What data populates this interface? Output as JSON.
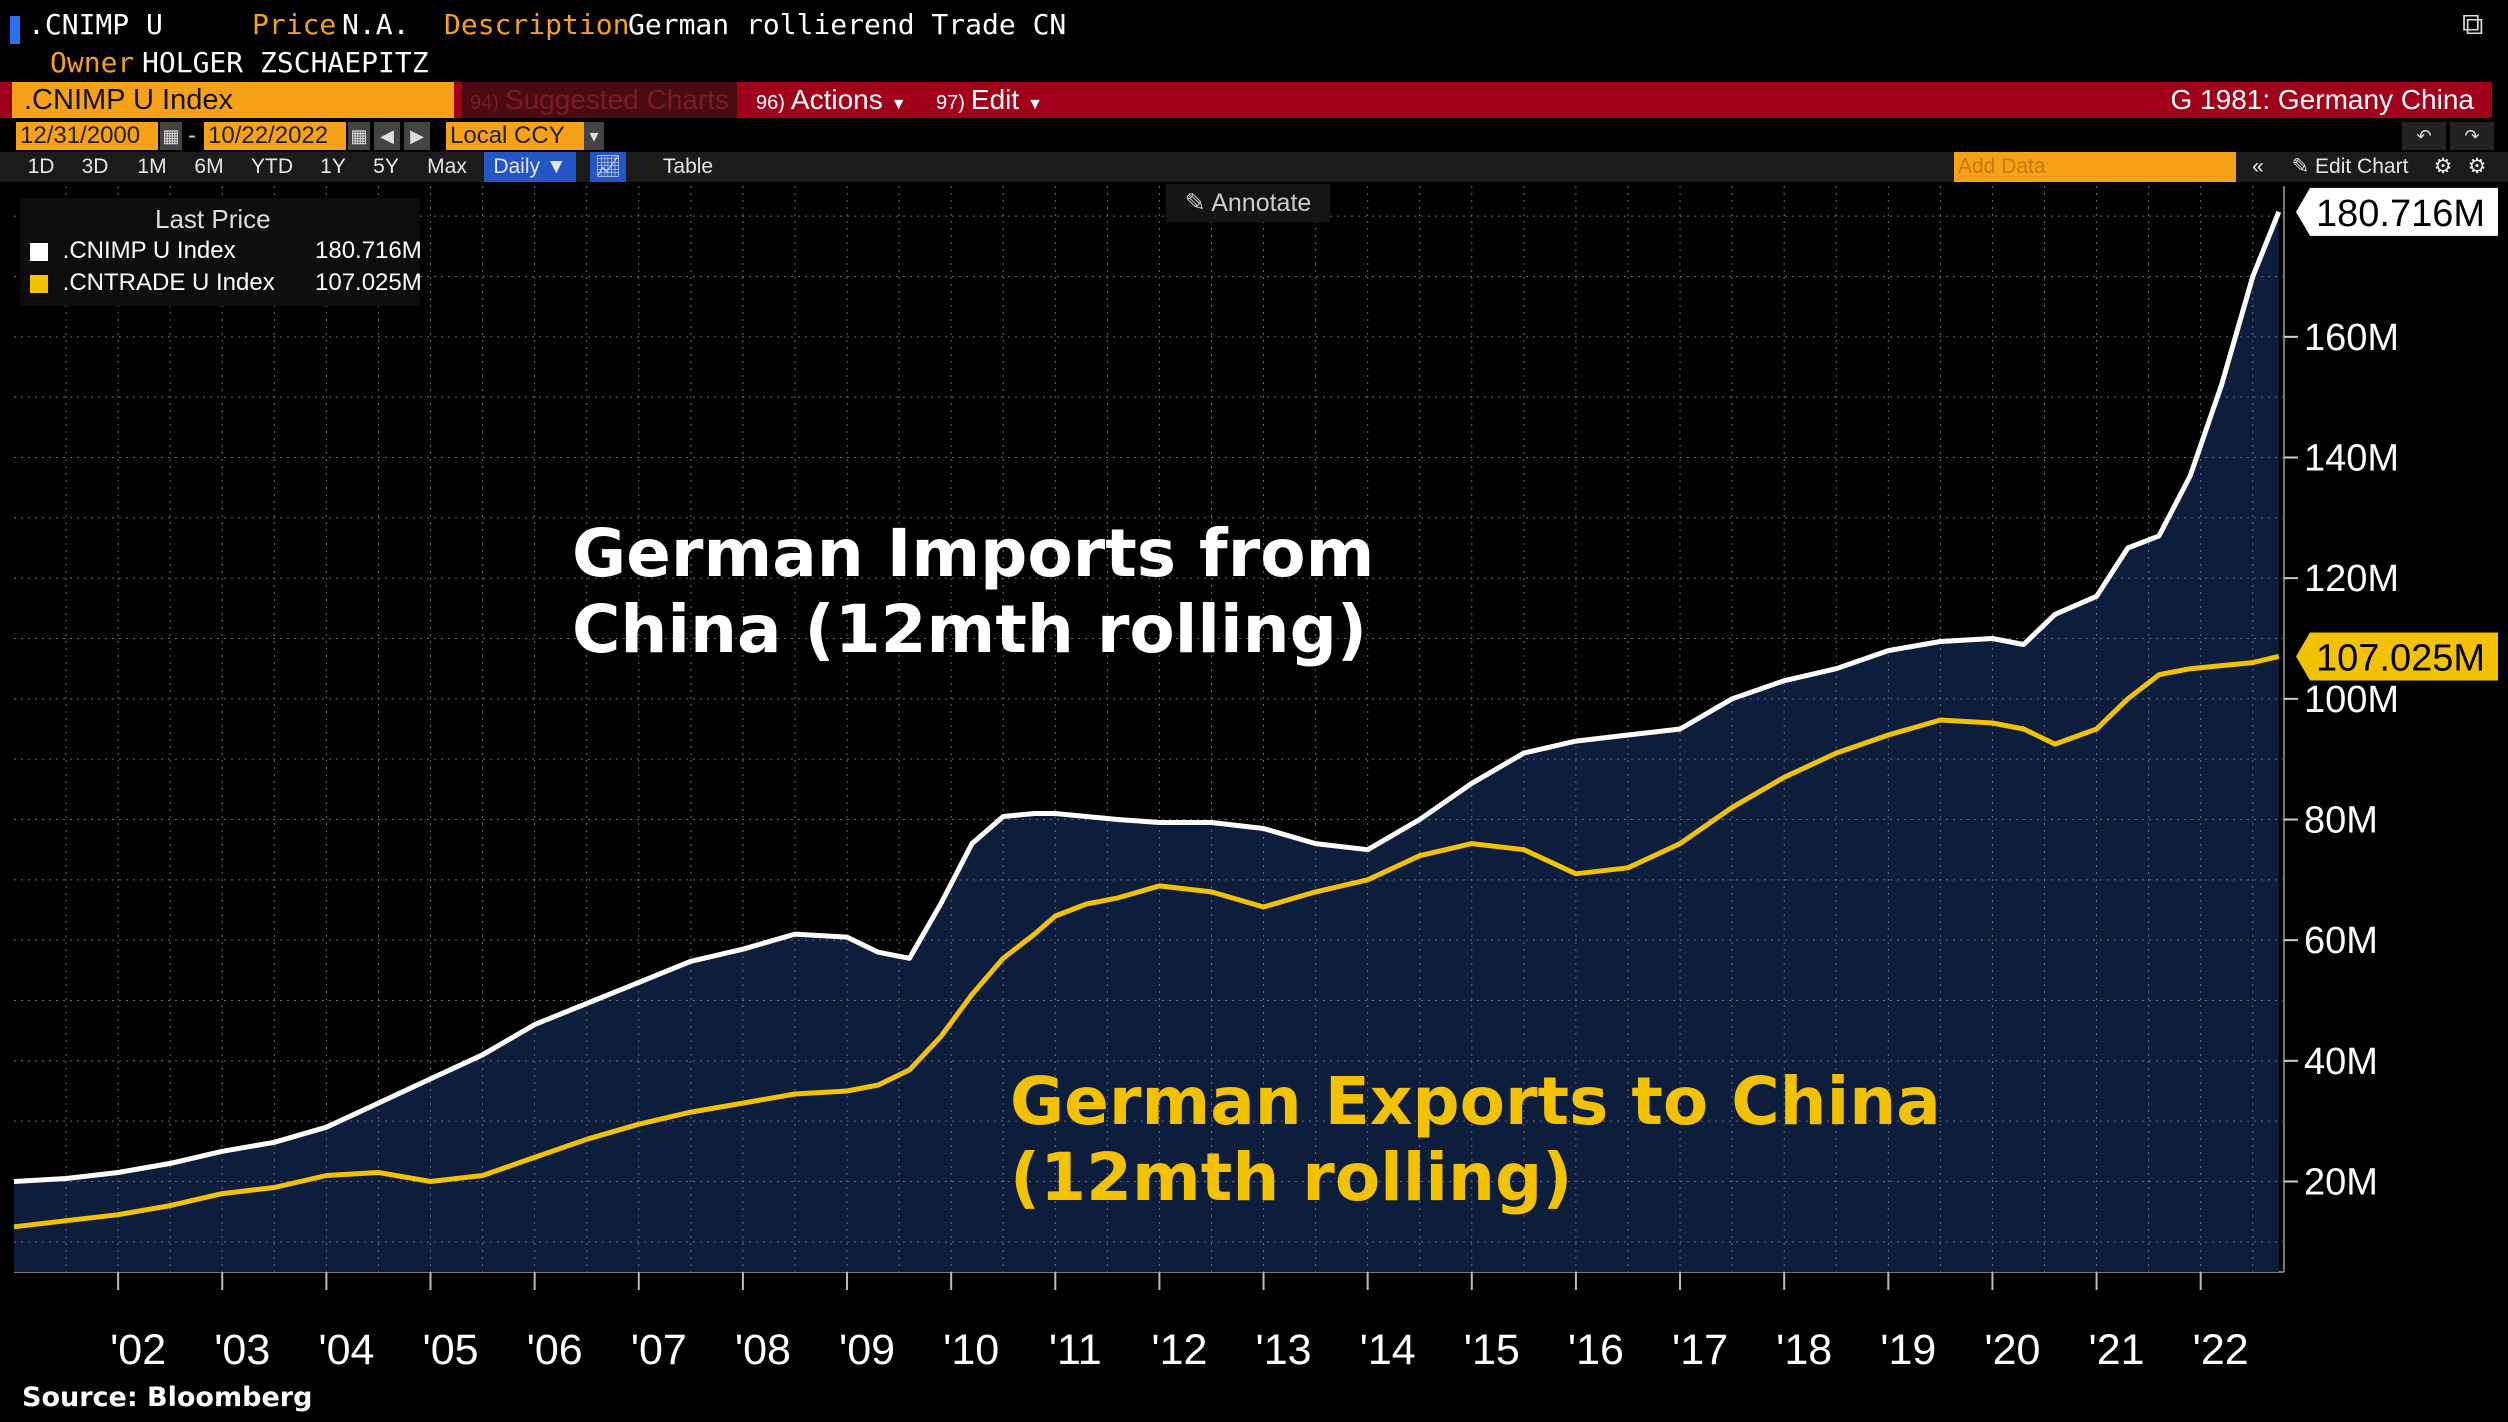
{
  "header": {
    "ticker": ".CNIMP U",
    "price_label": "Price",
    "price_value": "N.A.",
    "description_label": "Description",
    "description_value": "German rollierend Trade CN",
    "owner_label": "Owner",
    "owner_value": "HOLGER ZSCHAEPITZ"
  },
  "command_bar": {
    "security_field": ".CNIMP U Index",
    "suggested_num": "94)",
    "suggested_label": "Suggested Charts",
    "actions_num": "96)",
    "actions_label": "Actions",
    "edit_num": "97)",
    "edit_label": "Edit",
    "chart_name": "G 1981: Germany China"
  },
  "date_row": {
    "start_date": "12/31/2000",
    "separator": "-",
    "end_date": "10/22/2022",
    "currency": "Local CCY"
  },
  "period_row": {
    "periods": [
      "1D",
      "3D",
      "1M",
      "6M",
      "YTD",
      "1Y",
      "5Y",
      "Max"
    ],
    "frequency": "Daily",
    "table_label": "Table",
    "add_data_placeholder": "Add Data",
    "edit_chart_label": "Edit Chart"
  },
  "annotate_label": "Annotate",
  "legend": {
    "title": "Last Price",
    "entries": [
      {
        "name": ".CNIMP U Index",
        "value": "180.716M",
        "color": "#ffffff"
      },
      {
        "name": ".CNTRADE U Index",
        "value": "107.025M",
        "color": "#f2c200"
      }
    ]
  },
  "labels": {
    "imports_line1": "German Imports from",
    "imports_line2": "China (12mth rolling)",
    "exports_line1": "German Exports to China",
    "exports_line2": "(12mth rolling)"
  },
  "source": "Source: Bloomberg",
  "colors": {
    "imports": "#ffffff",
    "exports": "#f2c200",
    "area_fill": "#0c1e3c",
    "command_bar": "#a1001a",
    "orange_accent": "#f39f1f"
  },
  "chart_data": {
    "type": "line",
    "x_unit": "year",
    "ylim": [
      5,
      185
    ],
    "xlim": [
      2001.0,
      2022.8
    ],
    "y_ticks": [
      20,
      40,
      60,
      80,
      100,
      120,
      140,
      160
    ],
    "y_tick_labels": [
      "20M",
      "40M",
      "60M",
      "80M",
      "100M",
      "120M",
      "140M",
      "160M"
    ],
    "x_ticks": [
      2002,
      2003,
      2004,
      2005,
      2006,
      2007,
      2008,
      2009,
      2010,
      2011,
      2012,
      2013,
      2014,
      2015,
      2016,
      2017,
      2018,
      2019,
      2020,
      2021,
      2022
    ],
    "x_tick_labels": [
      "'02",
      "'03",
      "'04",
      "'05",
      "'06",
      "'07",
      "'08",
      "'09",
      "'10",
      "'11",
      "'12",
      "'13",
      "'14",
      "'15",
      "'16",
      "'17",
      "'18",
      "'19",
      "'20",
      "'21",
      "'22"
    ],
    "grid": true,
    "legend_position": "top-left",
    "series": [
      {
        "name": ".CNIMP U Index",
        "color": "#ffffff",
        "last_value_label": "180.716M",
        "last_value": 180.716,
        "x": [
          2001.0,
          2001.5,
          2002.0,
          2002.5,
          2003.0,
          2003.5,
          2004.0,
          2004.5,
          2005.0,
          2005.5,
          2006.0,
          2006.5,
          2007.0,
          2007.5,
          2008.0,
          2008.5,
          2009.0,
          2009.3,
          2009.6,
          2009.9,
          2010.2,
          2010.5,
          2010.8,
          2011.0,
          2011.3,
          2011.6,
          2012.0,
          2012.5,
          2013.0,
          2013.5,
          2014.0,
          2014.5,
          2015.0,
          2015.5,
          2016.0,
          2016.5,
          2017.0,
          2017.5,
          2018.0,
          2018.5,
          2019.0,
          2019.5,
          2020.0,
          2020.3,
          2020.6,
          2021.0,
          2021.3,
          2021.6,
          2021.9,
          2022.2,
          2022.5,
          2022.75
        ],
        "values": [
          20,
          20.5,
          21.5,
          23,
          25,
          26.5,
          29,
          33,
          37,
          41,
          46,
          49.5,
          53,
          56.5,
          58.5,
          61,
          60.5,
          58,
          57,
          66,
          76,
          80.5,
          81,
          81,
          80.5,
          80,
          79.5,
          79.5,
          78.5,
          76,
          75,
          80,
          86,
          91,
          93,
          94,
          95,
          100,
          103,
          105,
          108,
          109.5,
          110,
          109,
          114,
          117,
          125,
          127,
          137,
          152,
          170,
          180.716
        ]
      },
      {
        "name": ".CNTRADE U Index",
        "color": "#f2c200",
        "last_value_label": "107.025M",
        "last_value": 107.025,
        "x": [
          2001.0,
          2001.5,
          2002.0,
          2002.5,
          2003.0,
          2003.5,
          2004.0,
          2004.5,
          2005.0,
          2005.5,
          2006.0,
          2006.5,
          2007.0,
          2007.5,
          2008.0,
          2008.5,
          2009.0,
          2009.3,
          2009.6,
          2009.9,
          2010.2,
          2010.5,
          2010.8,
          2011.0,
          2011.3,
          2011.6,
          2012.0,
          2012.5,
          2013.0,
          2013.5,
          2014.0,
          2014.5,
          2015.0,
          2015.5,
          2016.0,
          2016.5,
          2017.0,
          2017.5,
          2018.0,
          2018.5,
          2019.0,
          2019.5,
          2020.0,
          2020.3,
          2020.6,
          2021.0,
          2021.3,
          2021.6,
          2021.9,
          2022.2,
          2022.5,
          2022.75
        ],
        "values": [
          12.5,
          13.5,
          14.5,
          16,
          18,
          19,
          21,
          21.5,
          20,
          21,
          24,
          27,
          29.5,
          31.5,
          33,
          34.5,
          35,
          36,
          38.5,
          44,
          51,
          57,
          61,
          64,
          66,
          67,
          69,
          68,
          65.5,
          68,
          70,
          74,
          76,
          75,
          71,
          72,
          76,
          82,
          87,
          91,
          94,
          96.5,
          96,
          95,
          92.5,
          95,
          100,
          104,
          105,
          105.5,
          106,
          107.025
        ]
      }
    ]
  }
}
